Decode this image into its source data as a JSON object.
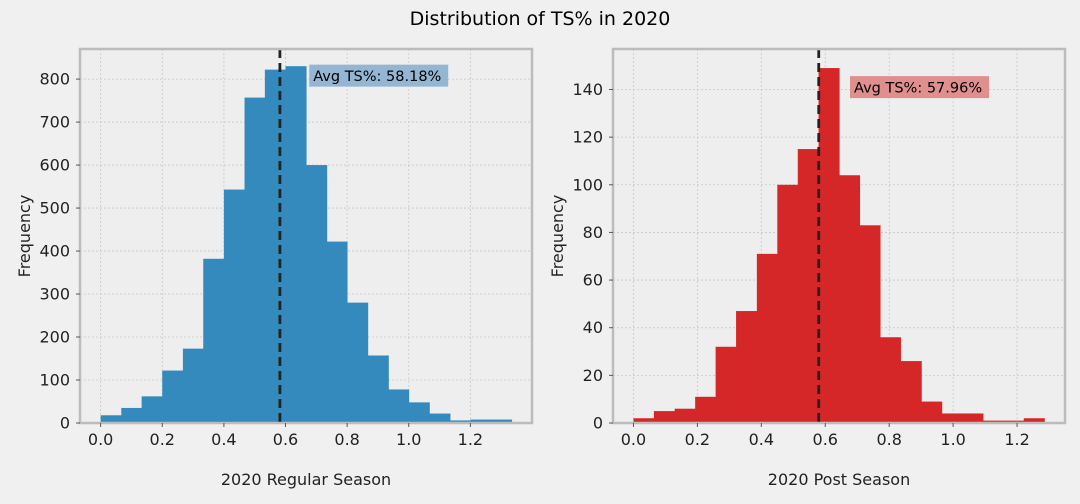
{
  "figure": {
    "title": "Distribution of TS% in 2020",
    "background": "#f0f0f0",
    "axes_facecolor": "#eeeeee",
    "spine_color": "#bcbcbc",
    "grid_color": "#c8c8c8"
  },
  "chart_data": [
    {
      "type": "bar",
      "subtype": "histogram",
      "xlabel": "2020 Regular Season",
      "ylabel": "Frequency",
      "color": "#348abd",
      "bin_width": 0.0667,
      "bins_start": [
        0.0,
        0.067,
        0.133,
        0.2,
        0.267,
        0.333,
        0.4,
        0.467,
        0.533,
        0.6,
        0.667,
        0.733,
        0.8,
        0.867,
        0.933,
        1.0,
        1.067,
        1.133,
        1.2,
        1.267
      ],
      "values": [
        18,
        35,
        62,
        122,
        173,
        382,
        543,
        757,
        822,
        830,
        600,
        422,
        280,
        157,
        78,
        48,
        22,
        6,
        8,
        8
      ],
      "xlim": [
        -0.067,
        1.4
      ],
      "ylim": [
        0,
        870
      ],
      "xticks": [
        0.0,
        0.2,
        0.4,
        0.6,
        0.8,
        1.0,
        1.2
      ],
      "xtick_labels": [
        "0.0",
        "0.2",
        "0.4",
        "0.6",
        "0.8",
        "1.0",
        "1.2"
      ],
      "yticks": [
        0,
        100,
        200,
        300,
        400,
        500,
        600,
        700,
        800
      ],
      "ytick_labels": [
        "0",
        "100",
        "200",
        "300",
        "400",
        "500",
        "600",
        "700",
        "800"
      ],
      "mean_line": 0.5818,
      "annotation": {
        "text": "Avg TS%: 58.18%",
        "x": 0.69,
        "y": 808,
        "box_color": "#94b6d3"
      },
      "grid": true
    },
    {
      "type": "bar",
      "subtype": "histogram",
      "xlabel": "2020 Post Season",
      "ylabel": "Frequency",
      "color": "#d62728",
      "bin_width": 0.0643,
      "bins_start": [
        0.0,
        0.064,
        0.129,
        0.193,
        0.257,
        0.321,
        0.386,
        0.45,
        0.514,
        0.579,
        0.643,
        0.707,
        0.771,
        0.836,
        0.9,
        0.964,
        1.029,
        1.093,
        1.157,
        1.221
      ],
      "values": [
        2,
        5,
        6,
        11,
        32,
        47,
        71,
        100,
        115,
        149,
        104,
        83,
        36,
        26,
        9,
        4,
        4,
        1,
        1,
        2
      ],
      "xlim": [
        -0.064,
        1.35
      ],
      "ylim": [
        0,
        157
      ],
      "xticks": [
        0.0,
        0.2,
        0.4,
        0.6,
        0.8,
        1.0,
        1.2
      ],
      "xtick_labels": [
        "0.0",
        "0.2",
        "0.4",
        "0.6",
        "0.8",
        "1.0",
        "1.2"
      ],
      "yticks": [
        0,
        20,
        40,
        60,
        80,
        100,
        120,
        140
      ],
      "ytick_labels": [
        "0",
        "20",
        "40",
        "60",
        "80",
        "100",
        "120",
        "140"
      ],
      "mean_line": 0.5796,
      "annotation": {
        "text": "Avg TS%: 57.96%",
        "x": 0.69,
        "y": 141,
        "box_color": "#e08f8f"
      },
      "grid": true
    }
  ]
}
